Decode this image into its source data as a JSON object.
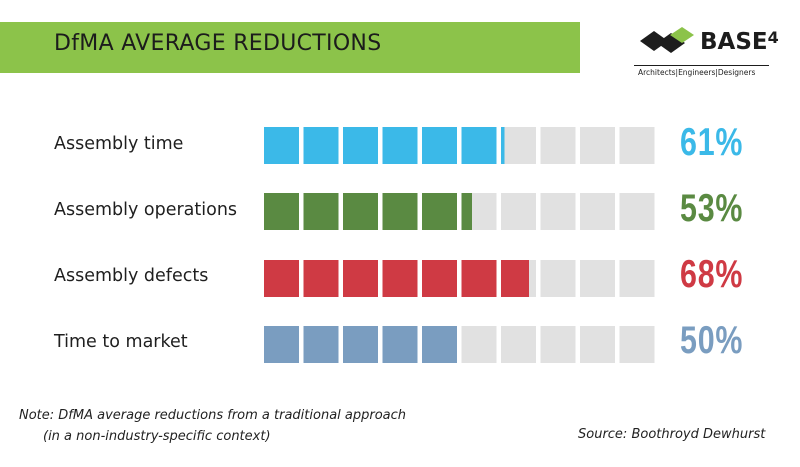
{
  "title": "DfMA AVERAGE REDUCTIONS",
  "logo": {
    "name": "BASE",
    "superscript": "4",
    "tagline": "Architects|Engineers|Designers"
  },
  "chart_data": {
    "type": "bar",
    "segments_per_bar": 10,
    "categories": [
      "Assembly time",
      "Assembly operations",
      "Assembly defects",
      "Time to market"
    ],
    "values": [
      61,
      53,
      68,
      50
    ],
    "value_labels": [
      "61%",
      "53%",
      "68%",
      "50%"
    ],
    "colors": [
      "#3bb9e8",
      "#5a8a42",
      "#cf3a44",
      "#7a9dc0"
    ],
    "empty_color": "#e1e1e1",
    "unit": "%"
  },
  "note": {
    "line1": "Note: DfMA average reductions from a traditional approach",
    "line2": "(in a non-industry-specific context)"
  },
  "source": "Source: Boothroyd Dewhurst"
}
